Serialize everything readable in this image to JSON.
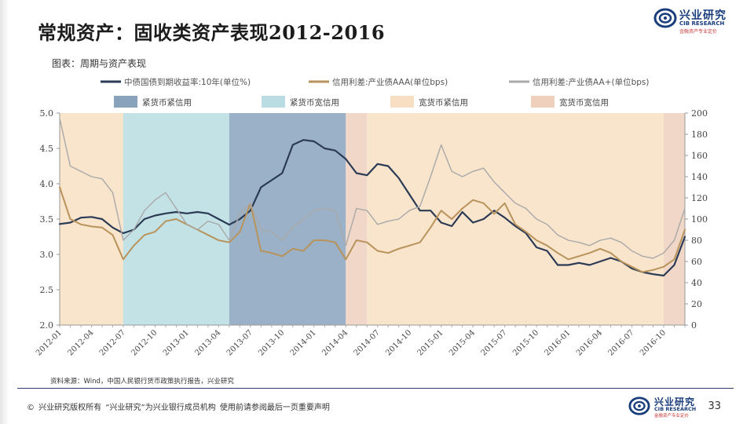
{
  "header": {
    "title": "常规资产：固收类资产表现2012-2016",
    "brand_name": "兴业研究",
    "brand_en": "CIB RESEARCH",
    "brand_slogan": "金融资产专业定价"
  },
  "chart_caption": "图表：周期与资产表现",
  "source_note": "资料来源：Wind，中国人民银行货币政策执行报告，兴业研究",
  "footer": {
    "copyright": "©  兴业研究版权所有    “兴业研究”为兴业银行成员机构    使用前请参阅最后一页重要声明",
    "page_number": "33"
  },
  "colors": {
    "treasury": "#2b3a55",
    "aaa": "#b8935b",
    "aa": "#a9a9a9",
    "tight_tight": "#8aa3bd",
    "tight_loose": "#b9dde2",
    "loose_tight": "#f8dfc3",
    "loose_loose": "#efd0bd",
    "footer_line": "#2d3e6e"
  },
  "chart_data": {
    "type": "line",
    "x_range": [
      "2012-01",
      "2016-12"
    ],
    "x_tick_labels": [
      "2012-01",
      "2012-04",
      "2012-07",
      "2012-10",
      "2013-01",
      "2013-04",
      "2013-07",
      "2013-10",
      "2014-01",
      "2014-04",
      "2014-07",
      "2014-10",
      "2015-01",
      "2015-04",
      "2015-07",
      "2015-10",
      "2016-01",
      "2016-04",
      "2016-07",
      "2016-10"
    ],
    "y_left": {
      "range": [
        2.0,
        5.0
      ],
      "ticks": [
        "2.0",
        "2.5",
        "3.0",
        "3.5",
        "4.0",
        "4.5",
        "5.0"
      ]
    },
    "y_right": {
      "range": [
        0,
        200
      ],
      "ticks": [
        "0",
        "20",
        "40",
        "60",
        "80",
        "100",
        "120",
        "140",
        "160",
        "180",
        "200"
      ]
    },
    "legend": [
      {
        "label": "中债国债到期收益率:10年(单位%)",
        "color": "#2b3a55",
        "kind": "line"
      },
      {
        "label": "信用利差:产业债AAA(单位bps)",
        "color": "#b8935b",
        "kind": "line"
      },
      {
        "label": "信用利差:产业债AA+(单位bps)",
        "color": "#a9a9a9",
        "kind": "line"
      },
      {
        "label": "紧货币紧信用",
        "color": "#8aa3bd",
        "kind": "box"
      },
      {
        "label": "紧货币宽信用",
        "color": "#b9dde2",
        "kind": "box"
      },
      {
        "label": "宽货币紧信用",
        "color": "#f8dfc3",
        "kind": "box"
      },
      {
        "label": "宽货币宽信用",
        "color": "#efd0bd",
        "kind": "box"
      }
    ],
    "regimes": [
      {
        "from": "2012-01",
        "to": "2012-07",
        "type": "loose_tight"
      },
      {
        "from": "2012-07",
        "to": "2013-05",
        "type": "tight_loose"
      },
      {
        "from": "2013-05",
        "to": "2014-04",
        "type": "tight_tight"
      },
      {
        "from": "2014-04",
        "to": "2014-06",
        "type": "loose_loose"
      },
      {
        "from": "2014-06",
        "to": "2016-10",
        "type": "loose_tight"
      },
      {
        "from": "2016-10",
        "to": "2016-12",
        "type": "loose_loose"
      }
    ],
    "series": [
      {
        "name": "中债国债到期收益率:10年(单位%)",
        "axis": "left",
        "color_key": "treasury",
        "width": 2.2,
        "points": [
          [
            "2012-01",
            3.43
          ],
          [
            "2012-02",
            3.45
          ],
          [
            "2012-03",
            3.52
          ],
          [
            "2012-04",
            3.53
          ],
          [
            "2012-05",
            3.5
          ],
          [
            "2012-06",
            3.38
          ],
          [
            "2012-07",
            3.3
          ],
          [
            "2012-08",
            3.35
          ],
          [
            "2012-09",
            3.5
          ],
          [
            "2012-10",
            3.55
          ],
          [
            "2012-11",
            3.58
          ],
          [
            "2012-12",
            3.6
          ],
          [
            "2013-01",
            3.58
          ],
          [
            "2013-02",
            3.6
          ],
          [
            "2013-03",
            3.58
          ],
          [
            "2013-04",
            3.5
          ],
          [
            "2013-05",
            3.42
          ],
          [
            "2013-06",
            3.5
          ],
          [
            "2013-07",
            3.62
          ],
          [
            "2013-08",
            3.95
          ],
          [
            "2013-09",
            4.05
          ],
          [
            "2013-10",
            4.15
          ],
          [
            "2013-11",
            4.55
          ],
          [
            "2013-12",
            4.62
          ],
          [
            "2014-01",
            4.6
          ],
          [
            "2014-02",
            4.5
          ],
          [
            "2014-03",
            4.47
          ],
          [
            "2014-04",
            4.35
          ],
          [
            "2014-05",
            4.15
          ],
          [
            "2014-06",
            4.12
          ],
          [
            "2014-07",
            4.28
          ],
          [
            "2014-08",
            4.25
          ],
          [
            "2014-09",
            4.08
          ],
          [
            "2014-10",
            3.85
          ],
          [
            "2014-11",
            3.62
          ],
          [
            "2014-12",
            3.62
          ],
          [
            "2015-01",
            3.45
          ],
          [
            "2015-02",
            3.4
          ],
          [
            "2015-03",
            3.6
          ],
          [
            "2015-04",
            3.45
          ],
          [
            "2015-05",
            3.5
          ],
          [
            "2015-06",
            3.62
          ],
          [
            "2015-07",
            3.52
          ],
          [
            "2015-08",
            3.4
          ],
          [
            "2015-09",
            3.3
          ],
          [
            "2015-10",
            3.1
          ],
          [
            "2015-11",
            3.05
          ],
          [
            "2015-12",
            2.85
          ],
          [
            "2016-01",
            2.85
          ],
          [
            "2016-02",
            2.88
          ],
          [
            "2016-03",
            2.85
          ],
          [
            "2016-04",
            2.9
          ],
          [
            "2016-05",
            2.95
          ],
          [
            "2016-06",
            2.9
          ],
          [
            "2016-07",
            2.8
          ],
          [
            "2016-08",
            2.75
          ],
          [
            "2016-09",
            2.72
          ],
          [
            "2016-10",
            2.7
          ],
          [
            "2016-11",
            2.85
          ],
          [
            "2016-12",
            3.25
          ]
        ]
      },
      {
        "name": "信用利差:产业债AAA(单位bps)",
        "axis": "right",
        "color_key": "aaa",
        "width": 2.0,
        "points": [
          [
            "2012-01",
            130
          ],
          [
            "2012-02",
            100
          ],
          [
            "2012-03",
            95
          ],
          [
            "2012-04",
            93
          ],
          [
            "2012-05",
            92
          ],
          [
            "2012-06",
            85
          ],
          [
            "2012-07",
            62
          ],
          [
            "2012-08",
            75
          ],
          [
            "2012-09",
            85
          ],
          [
            "2012-10",
            88
          ],
          [
            "2012-11",
            98
          ],
          [
            "2012-12",
            100
          ],
          [
            "2013-01",
            95
          ],
          [
            "2013-02",
            90
          ],
          [
            "2013-03",
            85
          ],
          [
            "2013-04",
            80
          ],
          [
            "2013-05",
            78
          ],
          [
            "2013-06",
            88
          ],
          [
            "2013-07",
            115
          ],
          [
            "2013-08",
            70
          ],
          [
            "2013-09",
            68
          ],
          [
            "2013-10",
            65
          ],
          [
            "2013-11",
            72
          ],
          [
            "2013-12",
            70
          ],
          [
            "2014-01",
            80
          ],
          [
            "2014-02",
            80
          ],
          [
            "2014-03",
            78
          ],
          [
            "2014-04",
            62
          ],
          [
            "2014-05",
            80
          ],
          [
            "2014-06",
            78
          ],
          [
            "2014-07",
            70
          ],
          [
            "2014-08",
            68
          ],
          [
            "2014-09",
            72
          ],
          [
            "2014-10",
            75
          ],
          [
            "2014-11",
            78
          ],
          [
            "2014-12",
            92
          ],
          [
            "2015-01",
            108
          ],
          [
            "2015-02",
            100
          ],
          [
            "2015-03",
            110
          ],
          [
            "2015-04",
            118
          ],
          [
            "2015-05",
            115
          ],
          [
            "2015-06",
            105
          ],
          [
            "2015-07",
            115
          ],
          [
            "2015-08",
            95
          ],
          [
            "2015-09",
            88
          ],
          [
            "2015-10",
            80
          ],
          [
            "2015-11",
            75
          ],
          [
            "2015-12",
            68
          ],
          [
            "2016-01",
            62
          ],
          [
            "2016-02",
            65
          ],
          [
            "2016-03",
            68
          ],
          [
            "2016-04",
            72
          ],
          [
            "2016-05",
            68
          ],
          [
            "2016-06",
            60
          ],
          [
            "2016-07",
            55
          ],
          [
            "2016-08",
            50
          ],
          [
            "2016-09",
            52
          ],
          [
            "2016-10",
            55
          ],
          [
            "2016-11",
            62
          ],
          [
            "2016-12",
            90
          ]
        ]
      },
      {
        "name": "信用利差:产业债AA+(单位bps)",
        "axis": "right",
        "color_key": "aa",
        "width": 1.4,
        "points": [
          [
            "2012-01",
            195
          ],
          [
            "2012-02",
            150
          ],
          [
            "2012-03",
            145
          ],
          [
            "2012-04",
            140
          ],
          [
            "2012-05",
            138
          ],
          [
            "2012-06",
            125
          ],
          [
            "2012-07",
            80
          ],
          [
            "2012-08",
            90
          ],
          [
            "2012-09",
            108
          ],
          [
            "2012-10",
            118
          ],
          [
            "2012-11",
            125
          ],
          [
            "2012-12",
            110
          ],
          [
            "2013-01",
            95
          ],
          [
            "2013-02",
            90
          ],
          [
            "2013-03",
            98
          ],
          [
            "2013-04",
            95
          ],
          [
            "2013-05",
            80
          ],
          [
            "2013-06",
            105
          ],
          [
            "2013-07",
            115
          ],
          [
            "2013-08",
            90
          ],
          [
            "2013-09",
            88
          ],
          [
            "2013-10",
            80
          ],
          [
            "2013-11",
            92
          ],
          [
            "2013-12",
            100
          ],
          [
            "2014-01",
            108
          ],
          [
            "2014-02",
            110
          ],
          [
            "2014-03",
            108
          ],
          [
            "2014-04",
            75
          ],
          [
            "2014-05",
            110
          ],
          [
            "2014-06",
            108
          ],
          [
            "2014-07",
            95
          ],
          [
            "2014-08",
            98
          ],
          [
            "2014-09",
            100
          ],
          [
            "2014-10",
            108
          ],
          [
            "2014-11",
            112
          ],
          [
            "2014-12",
            140
          ],
          [
            "2015-01",
            170
          ],
          [
            "2015-02",
            145
          ],
          [
            "2015-03",
            140
          ],
          [
            "2015-04",
            145
          ],
          [
            "2015-05",
            148
          ],
          [
            "2015-06",
            135
          ],
          [
            "2015-07",
            125
          ],
          [
            "2015-08",
            115
          ],
          [
            "2015-09",
            110
          ],
          [
            "2015-10",
            100
          ],
          [
            "2015-11",
            95
          ],
          [
            "2015-12",
            85
          ],
          [
            "2016-01",
            80
          ],
          [
            "2016-02",
            78
          ],
          [
            "2016-03",
            75
          ],
          [
            "2016-04",
            80
          ],
          [
            "2016-05",
            82
          ],
          [
            "2016-06",
            78
          ],
          [
            "2016-07",
            70
          ],
          [
            "2016-08",
            65
          ],
          [
            "2016-09",
            63
          ],
          [
            "2016-10",
            68
          ],
          [
            "2016-11",
            80
          ],
          [
            "2016-12",
            110
          ]
        ]
      }
    ]
  }
}
